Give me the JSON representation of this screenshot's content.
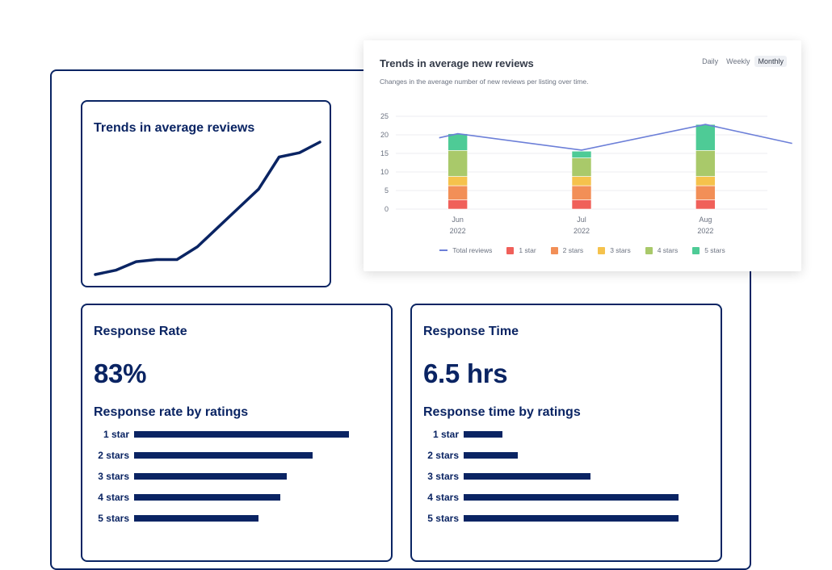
{
  "trend_card": {
    "title": "Trends in average reviews",
    "line_values": [
      0,
      2,
      6,
      7,
      7,
      13,
      22,
      31,
      40,
      55,
      57,
      62
    ]
  },
  "response_rate": {
    "title": "Response Rate",
    "value": "83%",
    "subtitle": "Response rate by ratings",
    "bars": [
      {
        "label": "1 star",
        "value": 100
      },
      {
        "label": "2 stars",
        "value": 83
      },
      {
        "label": "3 stars",
        "value": 71
      },
      {
        "label": "4 stars",
        "value": 68
      },
      {
        "label": "5 stars",
        "value": 58
      }
    ]
  },
  "response_time": {
    "title": "Response Time",
    "value": "6.5 hrs",
    "subtitle": "Response time by ratings",
    "bars": [
      {
        "label": "1 star",
        "value": 18
      },
      {
        "label": "2 stars",
        "value": 25
      },
      {
        "label": "3 stars",
        "value": 59
      },
      {
        "label": "4 stars",
        "value": 100
      },
      {
        "label": "5 stars",
        "value": 100
      }
    ]
  },
  "popup": {
    "title": "Trends in average new reviews",
    "subtitle": "Changes in the average number of new reviews per listing over time.",
    "toggles": [
      "Daily",
      "Weekly",
      "Monthly"
    ],
    "active_toggle": "Monthly"
  },
  "chart_data": {
    "type": "bar",
    "title": "Trends in average new reviews",
    "categories": [
      "Jun 2022",
      "Jul 2022",
      "Aug 2022"
    ],
    "category_lines": [
      [
        "Jun",
        "2022"
      ],
      [
        "Jul",
        "2022"
      ],
      [
        "Aug",
        "2022"
      ]
    ],
    "yticks": [
      0,
      5,
      10,
      15,
      20,
      25
    ],
    "ylim": [
      0,
      25
    ],
    "stacked": true,
    "series": [
      {
        "name": "1 star",
        "color": "#f0605a",
        "values": [
          2.5,
          2.5,
          2.5
        ]
      },
      {
        "name": "2 stars",
        "color": "#f28f57",
        "values": [
          3.8,
          3.8,
          3.8
        ]
      },
      {
        "name": "3 stars",
        "color": "#f5c24c",
        "values": [
          2.5,
          2.5,
          2.5
        ]
      },
      {
        "name": "4 stars",
        "color": "#a9c96a",
        "values": [
          7,
          5,
          7
        ]
      },
      {
        "name": "5 stars",
        "color": "#4ecb96",
        "values": [
          4.5,
          1.8,
          7
        ]
      }
    ],
    "line_series": {
      "name": "Total reviews",
      "color": "#6c7fd8",
      "x": [
        0.35,
        0.5,
        1.5,
        2.5,
        3.2
      ],
      "values": [
        19.2,
        20.3,
        15.9,
        22.8,
        17.7
      ]
    }
  }
}
